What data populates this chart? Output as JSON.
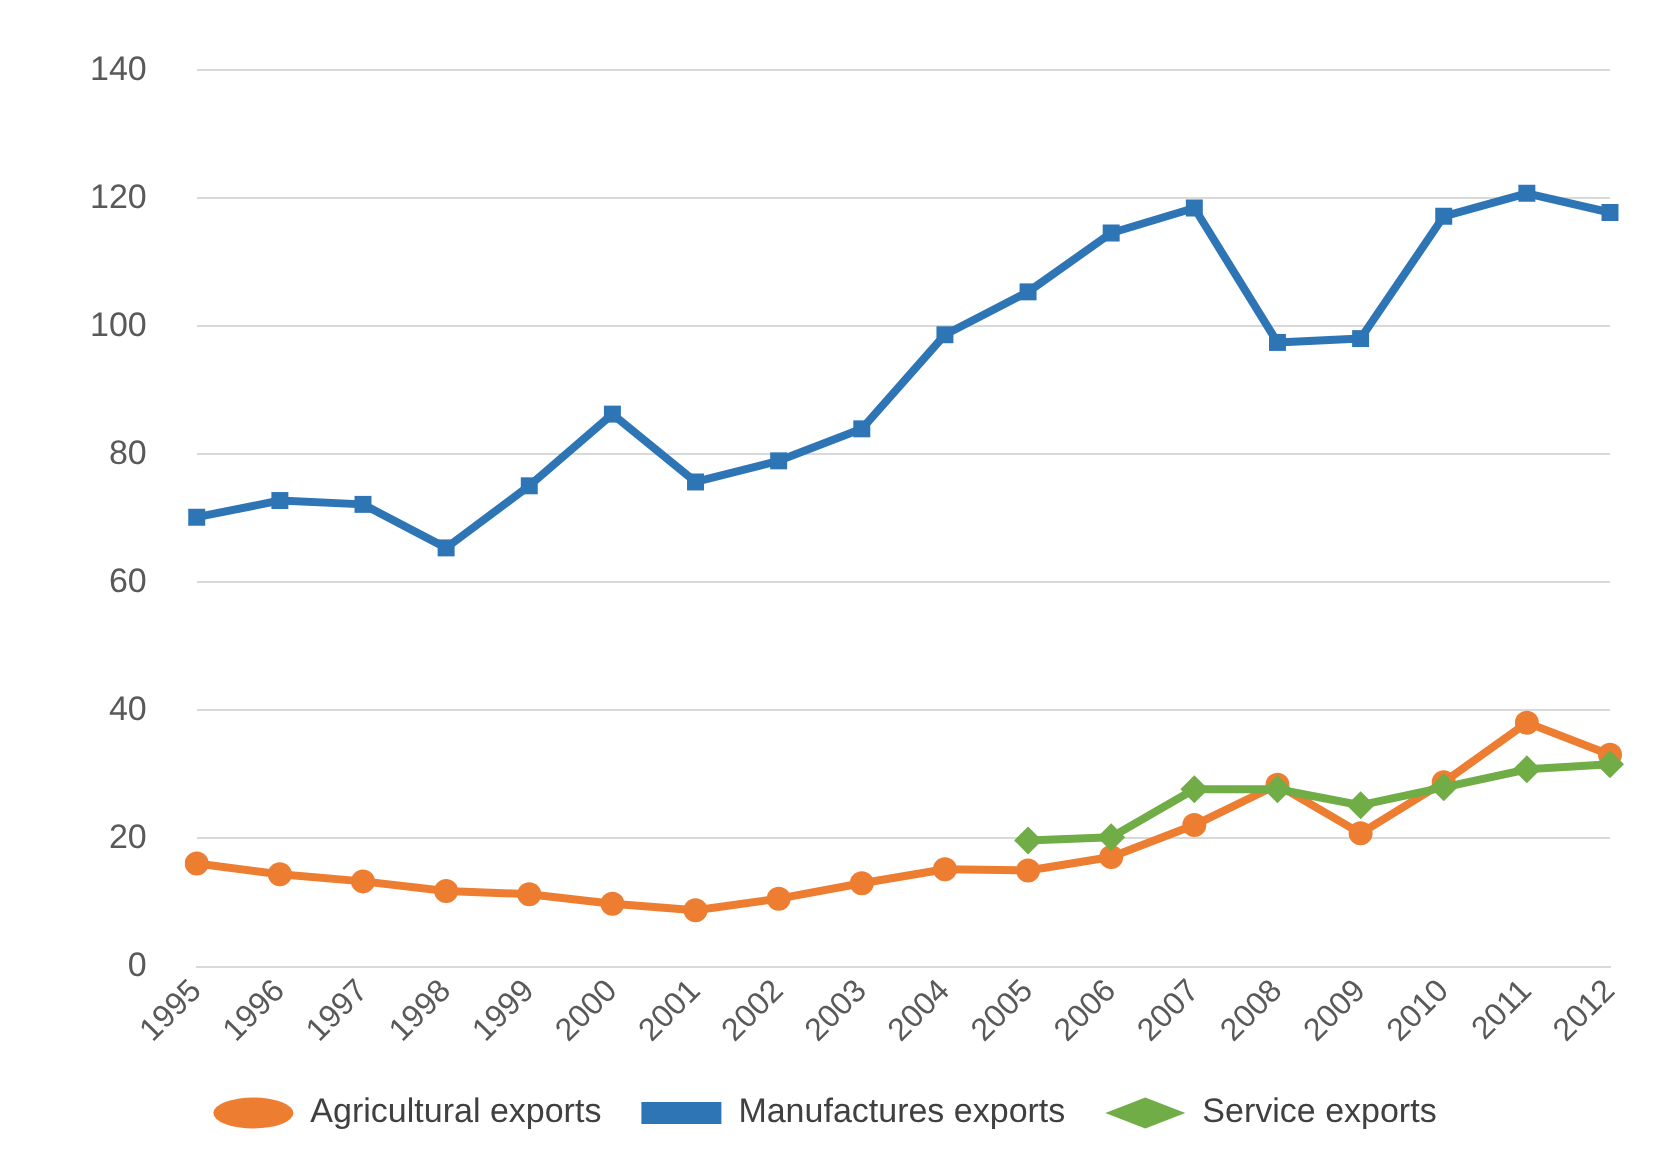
{
  "chart_data": {
    "type": "line",
    "categories": [
      "1995",
      "1996",
      "1997",
      "1998",
      "1999",
      "2000",
      "2001",
      "2002",
      "2003",
      "2004",
      "2005",
      "2006",
      "2007",
      "2008",
      "2009",
      "2010",
      "2011",
      "2012"
    ],
    "series": [
      {
        "name": "Agricultural exports",
        "color": "#ed7d31",
        "marker": "circle",
        "values": [
          16.1,
          14.4,
          13.3,
          11.8,
          11.3,
          9.8,
          8.8,
          10.6,
          13.0,
          15.2,
          15.0,
          17.1,
          22.1,
          28.4,
          20.8,
          28.8,
          38.1,
          33.1
        ]
      },
      {
        "name": "Manufactures exports",
        "color": "#2e75b6",
        "marker": "square",
        "values": [
          70.2,
          72.8,
          72.2,
          65.4,
          75.1,
          86.3,
          75.7,
          79.0,
          84.0,
          98.7,
          105.4,
          114.6,
          118.5,
          97.5,
          98.1,
          117.2,
          120.8,
          117.8
        ]
      },
      {
        "name": "Service exports",
        "color": "#70ad47",
        "marker": "diamond",
        "values": [
          null,
          null,
          null,
          null,
          null,
          null,
          null,
          null,
          null,
          null,
          19.7,
          20.2,
          27.7,
          27.7,
          25.2,
          28.0,
          30.8,
          31.6
        ]
      }
    ],
    "ylim": [
      0,
      140
    ],
    "yticks": [
      0,
      20,
      40,
      60,
      80,
      100,
      120,
      140
    ],
    "grid": "y",
    "legend": "bottom"
  }
}
